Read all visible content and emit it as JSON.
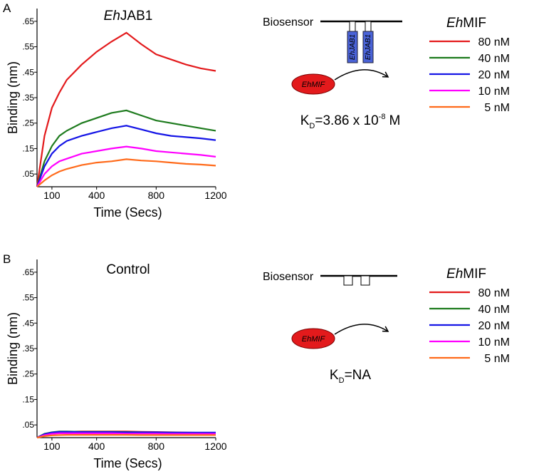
{
  "chart_data": [
    {
      "type": "line",
      "panel_label": "A",
      "title": {
        "italic": "Eh",
        "roman": "JAB1"
      },
      "xlabel": "Time (Secs)",
      "ylabel": "Binding (nm)",
      "xlim": [
        0,
        1200
      ],
      "ylim": [
        0,
        0.7
      ],
      "xticks": [
        100,
        400,
        800,
        1200
      ],
      "yticks": [
        {
          "value": 0.05,
          "label": ".05"
        },
        {
          "value": 0.15,
          "label": ".15"
        },
        {
          "value": 0.25,
          "label": ".25"
        },
        {
          "value": 0.35,
          "label": ".35"
        },
        {
          "value": 0.45,
          "label": ".45"
        },
        {
          "value": 0.55,
          "label": ".55"
        },
        {
          "value": 0.65,
          "label": ".65"
        }
      ],
      "x": [
        0,
        50,
        100,
        150,
        200,
        300,
        400,
        500,
        600,
        700,
        800,
        900,
        1000,
        1100,
        1200
      ],
      "legend_title": {
        "italic": "Eh",
        "roman": "MIF"
      },
      "series": [
        {
          "name": "80 nM",
          "color": "#e31a1c",
          "values": [
            0,
            0.2,
            0.31,
            0.37,
            0.42,
            0.48,
            0.53,
            0.57,
            0.605,
            0.56,
            0.52,
            0.5,
            0.48,
            0.465,
            0.455
          ]
        },
        {
          "name": "40 nM",
          "color": "#1e7b1e",
          "values": [
            0,
            0.1,
            0.16,
            0.2,
            0.22,
            0.25,
            0.27,
            0.29,
            0.3,
            0.28,
            0.26,
            0.25,
            0.24,
            0.23,
            0.22
          ]
        },
        {
          "name": "20 nM",
          "color": "#1515e6",
          "values": [
            0,
            0.08,
            0.13,
            0.16,
            0.18,
            0.2,
            0.215,
            0.23,
            0.24,
            0.225,
            0.21,
            0.2,
            0.195,
            0.19,
            0.183
          ]
        },
        {
          "name": "10 nM",
          "color": "#ff00ff",
          "values": [
            0,
            0.05,
            0.08,
            0.1,
            0.11,
            0.13,
            0.14,
            0.15,
            0.158,
            0.15,
            0.14,
            0.135,
            0.13,
            0.125,
            0.118
          ]
        },
        {
          "name": "5 nM",
          "color": "#ff6a1a",
          "values": [
            0,
            0.025,
            0.045,
            0.06,
            0.07,
            0.085,
            0.095,
            0.1,
            0.108,
            0.103,
            0.1,
            0.095,
            0.09,
            0.087,
            0.083
          ]
        }
      ],
      "diagram": {
        "biosensor_label": "Biosensor",
        "receptor_labels": [
          "EhJAB1",
          "EhJAB1"
        ],
        "ligand_label": "EhMIF",
        "kd": {
          "symbol": "K",
          "subscript": "D",
          "value": "=3.86 x 10",
          "exponent": "-8",
          "unit": "M"
        }
      }
    },
    {
      "type": "line",
      "panel_label": "B",
      "title": "Control",
      "xlabel": "Time (Secs)",
      "ylabel": "Binding (nm)",
      "xlim": [
        0,
        1200
      ],
      "ylim": [
        0,
        0.7
      ],
      "xticks": [
        100,
        400,
        800,
        1200
      ],
      "yticks": [
        {
          "value": 0.05,
          "label": ".05"
        },
        {
          "value": 0.15,
          "label": ".15"
        },
        {
          "value": 0.25,
          "label": ".25"
        },
        {
          "value": 0.35,
          "label": ".35"
        },
        {
          "value": 0.45,
          "label": ".45"
        },
        {
          "value": 0.55,
          "label": ".55"
        },
        {
          "value": 0.65,
          "label": ".65"
        }
      ],
      "x": [
        0,
        50,
        100,
        150,
        200,
        300,
        400,
        500,
        600,
        700,
        800,
        900,
        1000,
        1100,
        1200
      ],
      "legend_title": {
        "italic": "Eh",
        "roman": "MIF"
      },
      "series": [
        {
          "name": "80 nM",
          "color": "#e31a1c",
          "values": [
            0,
            0.014,
            0.02,
            0.023,
            0.023,
            0.024,
            0.024,
            0.024,
            0.024,
            0.023,
            0.022,
            0.021,
            0.02,
            0.019,
            0.018
          ]
        },
        {
          "name": "40 nM",
          "color": "#1e7b1e",
          "values": [
            0,
            0.015,
            0.021,
            0.024,
            0.024,
            0.023,
            0.023,
            0.023,
            0.022,
            0.021,
            0.02,
            0.02,
            0.019,
            0.019,
            0.018
          ]
        },
        {
          "name": "20 nM",
          "color": "#1515e6",
          "values": [
            0,
            0.014,
            0.02,
            0.023,
            0.023,
            0.022,
            0.022,
            0.022,
            0.021,
            0.021,
            0.021,
            0.02,
            0.02,
            0.02,
            0.02
          ]
        },
        {
          "name": "10 nM",
          "color": "#ff00ff",
          "values": [
            0,
            0.01,
            0.015,
            0.017,
            0.017,
            0.017,
            0.017,
            0.017,
            0.016,
            0.016,
            0.016,
            0.015,
            0.015,
            0.015,
            0.015
          ]
        },
        {
          "name": "5 nM",
          "color": "#ff6a1a",
          "values": [
            0,
            0.006,
            0.009,
            0.01,
            0.011,
            0.011,
            0.011,
            0.011,
            0.011,
            0.01,
            0.01,
            0.01,
            0.01,
            0.01,
            0.01
          ]
        }
      ],
      "diagram": {
        "biosensor_label": "Biosensor",
        "ligand_label": "EhMIF",
        "kd": {
          "symbol": "K",
          "subscript": "D",
          "value": "=NA"
        }
      }
    }
  ]
}
